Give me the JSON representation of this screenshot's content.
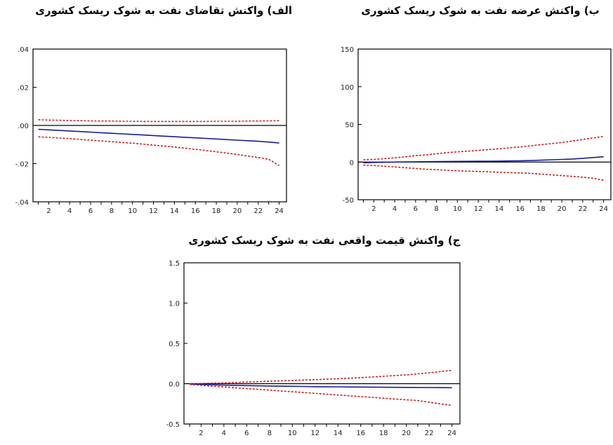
{
  "charts": [
    {
      "id": "demand",
      "title": "الف) واکنش تقاضای نفت به شوک ریسک کشوری",
      "type": "line",
      "x": [
        1,
        2,
        3,
        4,
        5,
        6,
        7,
        8,
        9,
        10,
        11,
        12,
        13,
        14,
        15,
        16,
        17,
        18,
        19,
        20,
        21,
        22,
        23,
        24
      ],
      "xticks": [
        "2",
        "4",
        "6",
        "8",
        "10",
        "12",
        "14",
        "16",
        "18",
        "20",
        "22",
        "24"
      ],
      "yticks": [
        ".04",
        ".02",
        ".00",
        "-.02",
        "-.04"
      ],
      "ytick_values": [
        0.04,
        0.02,
        0.0,
        -0.02,
        -0.04
      ],
      "ylim": [
        -0.04,
        0.04
      ],
      "series": [
        {
          "role": "response",
          "color": "#1a1aa0",
          "style": "solid",
          "values": [
            -0.002,
            -0.0023,
            -0.0026,
            -0.0029,
            -0.0032,
            -0.0035,
            -0.0038,
            -0.0041,
            -0.0044,
            -0.0047,
            -0.005,
            -0.0053,
            -0.0056,
            -0.0059,
            -0.0062,
            -0.0065,
            -0.0068,
            -0.0071,
            -0.0074,
            -0.0077,
            -0.008,
            -0.0083,
            -0.0087,
            -0.0092
          ]
        },
        {
          "role": "upper",
          "color": "#cc2222",
          "style": "dashed",
          "values": [
            0.003,
            0.0028,
            0.0027,
            0.0026,
            0.0025,
            0.0024,
            0.0023,
            0.0023,
            0.0022,
            0.0022,
            0.0021,
            0.0021,
            0.0021,
            0.0021,
            0.0021,
            0.0021,
            0.0021,
            0.0022,
            0.0022,
            0.0022,
            0.0023,
            0.0023,
            0.0024,
            0.0025
          ]
        },
        {
          "role": "lower",
          "color": "#cc2222",
          "style": "dashed",
          "values": [
            -0.006,
            -0.0062,
            -0.0066,
            -0.0069,
            -0.0073,
            -0.0077,
            -0.0081,
            -0.0085,
            -0.0089,
            -0.0093,
            -0.0098,
            -0.0103,
            -0.0108,
            -0.0113,
            -0.0119,
            -0.0125,
            -0.0131,
            -0.0138,
            -0.0145,
            -0.0152,
            -0.016,
            -0.0168,
            -0.0177,
            -0.021
          ]
        }
      ]
    },
    {
      "id": "supply",
      "title": "ب) واکنش عرضه نفت به شوک ریسک کشوری",
      "type": "line",
      "x": [
        1,
        2,
        3,
        4,
        5,
        6,
        7,
        8,
        9,
        10,
        11,
        12,
        13,
        14,
        15,
        16,
        17,
        18,
        19,
        20,
        21,
        22,
        23,
        24
      ],
      "xticks": [
        "2",
        "4",
        "6",
        "8",
        "10",
        "12",
        "14",
        "16",
        "18",
        "20",
        "22",
        "24"
      ],
      "yticks": [
        "150",
        "100",
        "50",
        "0",
        "-50"
      ],
      "ytick_values": [
        150,
        100,
        50,
        0,
        -50
      ],
      "ylim": [
        -50,
        150
      ],
      "series": [
        {
          "role": "response",
          "color": "#1a1aa0",
          "style": "solid",
          "values": [
            -1,
            -0.5,
            -0.3,
            0,
            0.2,
            0.3,
            0.5,
            0.6,
            0.8,
            0.9,
            1.0,
            1.1,
            1.2,
            1.3,
            1.5,
            1.7,
            2,
            2.5,
            3,
            3.5,
            4,
            5,
            6,
            7
          ]
        },
        {
          "role": "upper",
          "color": "#cc2222",
          "style": "dashed",
          "values": [
            3,
            3.5,
            4.5,
            5.5,
            7,
            8.5,
            9.5,
            11,
            12.5,
            13.5,
            14.5,
            15.5,
            16.5,
            17.5,
            19,
            20,
            21.5,
            23,
            24.5,
            26,
            28,
            30,
            32,
            34
          ]
        },
        {
          "role": "lower",
          "color": "#cc2222",
          "style": "dashed",
          "values": [
            -4,
            -4.5,
            -5.5,
            -6.5,
            -7.5,
            -8.5,
            -9.5,
            -10,
            -11,
            -11.5,
            -12,
            -12.5,
            -13,
            -13.5,
            -14,
            -14.5,
            -15,
            -16,
            -17,
            -18,
            -19,
            -20,
            -21.5,
            -24
          ]
        }
      ]
    },
    {
      "id": "price",
      "title": "ج) واکنش قیمت واقعی نفت به شوک ریسک کشوری",
      "type": "line",
      "x": [
        1,
        2,
        3,
        4,
        5,
        6,
        7,
        8,
        9,
        10,
        11,
        12,
        13,
        14,
        15,
        16,
        17,
        18,
        19,
        20,
        21,
        22,
        23,
        24
      ],
      "xticks": [
        "2",
        "4",
        "6",
        "8",
        "10",
        "12",
        "14",
        "16",
        "18",
        "20",
        "22",
        "24"
      ],
      "yticks": [
        "1.5",
        "1.0",
        "0.5",
        "0.0",
        "-0.5"
      ],
      "ytick_values": [
        1.5,
        1.0,
        0.5,
        0.0,
        -0.5
      ],
      "ylim": [
        -0.5,
        1.5
      ],
      "series": [
        {
          "role": "response",
          "color": "#1a1aa0",
          "style": "solid",
          "values": [
            -0.005,
            -0.01,
            -0.014,
            -0.018,
            -0.021,
            -0.024,
            -0.027,
            -0.029,
            -0.031,
            -0.033,
            -0.035,
            -0.037,
            -0.038,
            -0.039,
            -0.041,
            -0.042,
            -0.043,
            -0.044,
            -0.045,
            -0.046,
            -0.047,
            -0.048,
            -0.049,
            -0.05
          ]
        },
        {
          "role": "upper",
          "color": "#cc2222",
          "style": "dashed",
          "values": [
            0.0,
            0.003,
            0.007,
            0.01,
            0.015,
            0.02,
            0.025,
            0.03,
            0.035,
            0.04,
            0.045,
            0.05,
            0.056,
            0.062,
            0.068,
            0.075,
            0.083,
            0.092,
            0.101,
            0.11,
            0.122,
            0.135,
            0.15,
            0.165
          ]
        },
        {
          "role": "lower",
          "color": "#cc2222",
          "style": "dashed",
          "values": [
            -0.01,
            -0.02,
            -0.03,
            -0.04,
            -0.05,
            -0.06,
            -0.07,
            -0.08,
            -0.09,
            -0.1,
            -0.11,
            -0.12,
            -0.13,
            -0.14,
            -0.15,
            -0.16,
            -0.17,
            -0.18,
            -0.19,
            -0.2,
            -0.21,
            -0.23,
            -0.25,
            -0.27
          ]
        }
      ]
    }
  ],
  "chart_data": [
    {
      "type": "line",
      "title": "الف) واکنش تقاضای نفت به شوک ریسک کشوری",
      "ylim": [
        -0.04,
        0.04
      ],
      "x": [
        1,
        2,
        3,
        4,
        5,
        6,
        7,
        8,
        9,
        10,
        11,
        12,
        13,
        14,
        15,
        16,
        17,
        18,
        19,
        20,
        21,
        22,
        23,
        24
      ]
    },
    {
      "type": "line",
      "title": "ب) واکنش عرضه نفت به شوک ریسک کشوری",
      "ylim": [
        -50,
        150
      ],
      "x": [
        1,
        2,
        3,
        4,
        5,
        6,
        7,
        8,
        9,
        10,
        11,
        12,
        13,
        14,
        15,
        16,
        17,
        18,
        19,
        20,
        21,
        22,
        23,
        24
      ]
    },
    {
      "type": "line",
      "title": "ج) واکنش قیمت واقعی نفت به شوک ریسک کشوری",
      "ylim": [
        -0.5,
        1.5
      ],
      "x": [
        1,
        2,
        3,
        4,
        5,
        6,
        7,
        8,
        9,
        10,
        11,
        12,
        13,
        14,
        15,
        16,
        17,
        18,
        19,
        20,
        21,
        22,
        23,
        24
      ]
    }
  ]
}
